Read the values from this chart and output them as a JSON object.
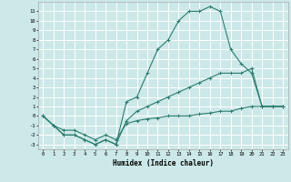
{
  "xlabel": "Humidex (Indice chaleur)",
  "bg_color": "#cce8e8",
  "grid_color": "#ffffff",
  "line_color": "#2d7d6e",
  "x_values": [
    0,
    1,
    2,
    3,
    4,
    5,
    6,
    7,
    8,
    9,
    10,
    11,
    12,
    13,
    14,
    15,
    16,
    17,
    18,
    19,
    20,
    21,
    22,
    23
  ],
  "line1": [
    0,
    -1,
    -2,
    -2,
    -2.5,
    -3,
    -2.5,
    -3,
    1.5,
    2,
    4.5,
    7,
    8,
    10,
    11,
    11,
    11.5,
    11,
    7,
    5.5,
    4.5,
    1,
    1,
    1
  ],
  "line2": [
    0,
    -1,
    -2,
    -2,
    -2.5,
    -3,
    -2.5,
    -3,
    -0.5,
    0.5,
    1,
    1.5,
    2,
    2.5,
    3,
    3.5,
    4,
    4.5,
    4.5,
    4.5,
    5,
    1,
    1,
    1
  ],
  "line3": [
    0,
    -1,
    -1.5,
    -1.5,
    -2,
    -2.5,
    -2,
    -2.5,
    -0.8,
    -0.5,
    -0.3,
    -0.2,
    0,
    0,
    0,
    0.2,
    0.3,
    0.5,
    0.5,
    0.8,
    1,
    1,
    1,
    1
  ],
  "ylim": [
    -3.5,
    12
  ],
  "xlim": [
    -0.5,
    23.5
  ],
  "yticks": [
    -3,
    -2,
    -1,
    0,
    1,
    2,
    3,
    4,
    5,
    6,
    7,
    8,
    9,
    10,
    11
  ],
  "xticks": [
    0,
    1,
    2,
    3,
    4,
    5,
    6,
    7,
    8,
    9,
    10,
    11,
    12,
    13,
    14,
    15,
    16,
    17,
    18,
    19,
    20,
    21,
    22,
    23
  ]
}
